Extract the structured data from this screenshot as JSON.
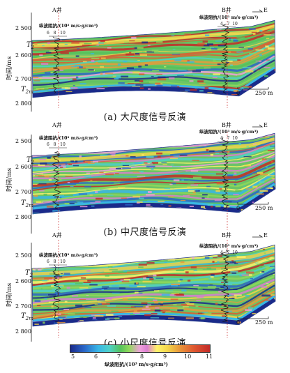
{
  "panels": [
    {
      "caption": "(a) 大尺度信号反演",
      "well_a": "A井",
      "well_b": "B井",
      "dir_label": "E",
      "track_title": "纵波阻抗/(10³ m/s·g/cm³)",
      "track_ticks_a": [
        "6",
        "8",
        "10"
      ],
      "track_ticks_b": [
        "4",
        "7",
        "10"
      ],
      "y_ticks": [
        "2 500",
        "2 600",
        "2 700",
        "2 800"
      ],
      "y_label": "时间/ms",
      "horizons": [
        {
          "main": "T",
          "sub": "2"
        },
        {
          "main": "T",
          "sub": "2m"
        }
      ],
      "scale_start": "0",
      "scale_end": "250 m"
    },
    {
      "caption": "(b) 中尺度信号反演",
      "well_a": "A井",
      "well_b": "B井",
      "dir_label": "E",
      "track_title": "纵波阻抗/(10³ m/s·g/cm³)",
      "track_ticks_a": [
        "6",
        "8",
        "10"
      ],
      "track_ticks_b": [
        "4",
        "7",
        "10"
      ],
      "y_ticks": [
        "2 500",
        "2 600",
        "2 700",
        "2 800"
      ],
      "y_label": "时间/ms",
      "horizons": [
        {
          "main": "T",
          "sub": "2"
        },
        {
          "main": "T",
          "sub": "2m"
        }
      ],
      "scale_start": "0",
      "scale_end": "250 m"
    },
    {
      "caption": "(c) 小尺度信号反演",
      "well_a": "A井",
      "well_b": "B井",
      "dir_label": "E",
      "track_title": "纵波阻抗/(10³ m/s·g/cm³)",
      "track_ticks_a": [
        "6",
        "8",
        "10"
      ],
      "track_ticks_b": [
        "4",
        "7",
        "10"
      ],
      "y_ticks": [
        "2 500",
        "2 600",
        "2 700",
        "2 800"
      ],
      "y_label": "时间/ms",
      "horizons": [
        {
          "main": "T",
          "sub": "2"
        },
        {
          "main": "T",
          "sub": "2m"
        }
      ],
      "scale_start": "0",
      "scale_end": "250 m"
    }
  ],
  "colorbar": {
    "ticks": [
      "5",
      "6",
      "7",
      "8",
      "9",
      "10",
      "11"
    ],
    "title": "纵波阻抗/(10³ m/s·g/cm³)",
    "colors": [
      "#1a2a8a",
      "#2a66c8",
      "#38b6e6",
      "#4fd1c7",
      "#55c25a",
      "#8fd85a",
      "#f0a0dc",
      "#d97fd0",
      "#fff36a",
      "#f3d44a",
      "#e99a3b",
      "#e05a30",
      "#c22a28"
    ]
  }
}
